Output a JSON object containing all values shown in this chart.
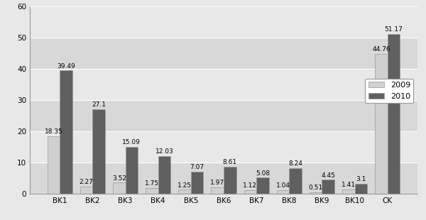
{
  "categories": [
    "BK1",
    "BK2",
    "BK3",
    "BK4",
    "BK5",
    "BK6",
    "BK7",
    "BK8",
    "BK9",
    "BK10",
    "CK"
  ],
  "values_2009": [
    18.35,
    2.27,
    3.52,
    1.75,
    1.25,
    1.97,
    1.12,
    1.04,
    0.51,
    1.41,
    44.76
  ],
  "values_2010": [
    39.49,
    27.1,
    15.09,
    12.03,
    7.07,
    8.61,
    5.08,
    8.24,
    4.45,
    3.1,
    51.17
  ],
  "labels_2009": [
    "18.35",
    "2.27",
    "3.52",
    "1.75",
    "1.25",
    "1.97",
    "1.12",
    "1.04",
    "0.51",
    "1.41",
    "44.76"
  ],
  "labels_2010": [
    "39.49",
    "27.1",
    "15.09",
    "12.03",
    "7.07",
    "8.61",
    "5.08",
    "8.24",
    "4.45",
    "3.1",
    "51.17"
  ],
  "color_2009": "#d0d0d0",
  "color_2010": "#606060",
  "legend_labels": [
    "2009",
    "2010"
  ],
  "ylim": [
    0,
    60
  ],
  "yticks": [
    0,
    10,
    20,
    30,
    40,
    50,
    60
  ],
  "bar_width": 0.38,
  "figsize": [
    6.0,
    3.1
  ],
  "dpi": 100,
  "label_fontsize": 6.5,
  "tick_fontsize": 7.5,
  "legend_fontsize": 8,
  "bg_color": "#e8e8e8",
  "plot_bg_color": "#e0e0e0",
  "grid_line_color": "#ffffff",
  "band_color_dark": "#d8d8d8",
  "band_color_light": "#e8e8e8",
  "spine_color": "#999999",
  "edge_color": "#999999"
}
